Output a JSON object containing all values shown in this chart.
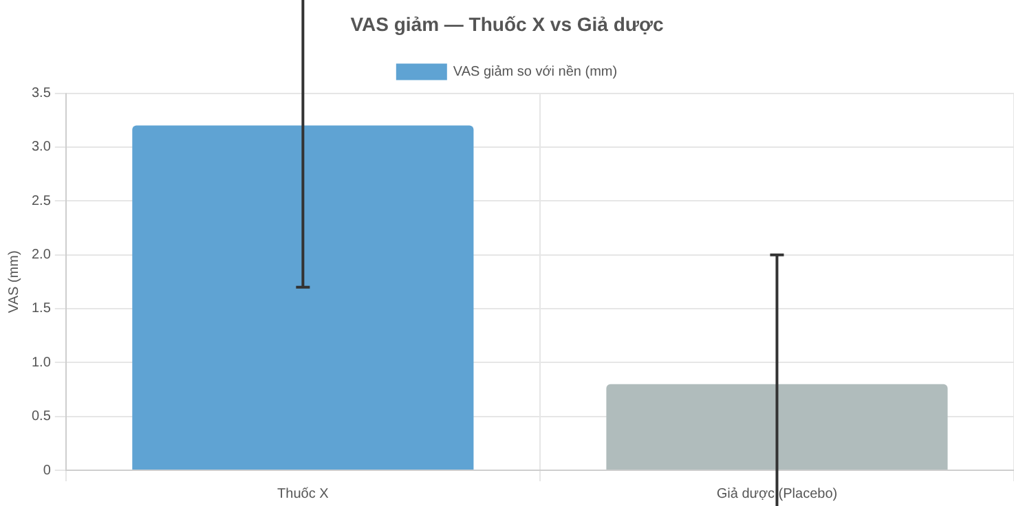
{
  "chart_data": {
    "type": "bar",
    "title": "VAS giảm — Thuốc X vs Giả dược",
    "ylabel": "VAS (mm)",
    "categories": [
      "Thuốc X",
      "Giả dược (Placebo)"
    ],
    "series": [
      {
        "name": "VAS giảm so với nền (mm)",
        "color": "#5fa3d3",
        "colors": [
          "#5fa3d3",
          "#b0bcbc"
        ],
        "values": [
          3.2,
          0.8
        ],
        "errors": [
          1.5,
          1.2
        ]
      }
    ],
    "ylim": [
      0,
      3.5
    ],
    "yticks": [
      0,
      0.5,
      {
        "value": 1,
        "label": "1.0"
      },
      1.5,
      {
        "value": 2,
        "label": "2.0"
      },
      2.5,
      {
        "value": 3,
        "label": "3.0"
      },
      3.5
    ],
    "grid": true,
    "legend": "top"
  }
}
